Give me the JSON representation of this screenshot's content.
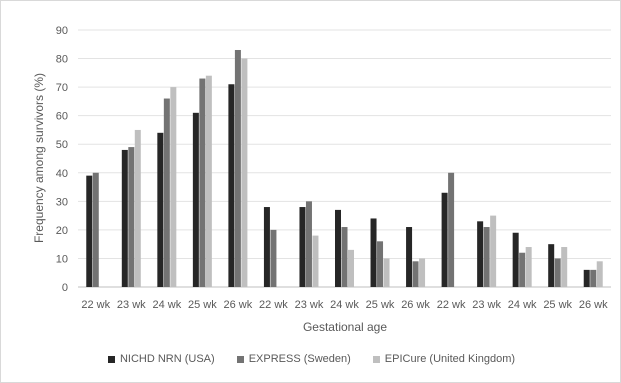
{
  "chart_data": {
    "type": "bar",
    "title": "",
    "xlabel": "Gestational age",
    "ylabel": "Frequency among survivors (%)",
    "ylim": [
      0,
      90
    ],
    "yticks": [
      "0",
      "10",
      "20",
      "30",
      "40",
      "50",
      "60",
      "70",
      "80",
      "90"
    ],
    "grid": true,
    "legend_position": "bottom",
    "categories": [
      "22 wk",
      "23 wk",
      "24 wk",
      "25 wk",
      "26 wk",
      "22 wk",
      "23 wk",
      "24 wk",
      "25 wk",
      "26 wk",
      "22 wk",
      "23 wk",
      "24 wk",
      "25 wk",
      "26 wk"
    ],
    "series": [
      {
        "name": "NICHD NRN (USA)",
        "color": "#262626",
        "values": [
          39,
          48,
          54,
          61,
          71,
          28,
          28,
          27,
          24,
          21,
          33,
          23,
          19,
          15,
          6
        ]
      },
      {
        "name": "EXPRESS (Sweden)",
        "color": "#737373",
        "values": [
          40,
          49,
          66,
          73,
          83,
          20,
          30,
          21,
          16,
          9,
          40,
          21,
          12,
          10,
          6
        ]
      },
      {
        "name": "EPICure (United Kingdom)",
        "color": "#bfbfbf",
        "values": [
          null,
          55,
          70,
          74,
          80,
          null,
          18,
          13,
          10,
          10,
          null,
          25,
          14,
          14,
          9
        ]
      }
    ]
  }
}
